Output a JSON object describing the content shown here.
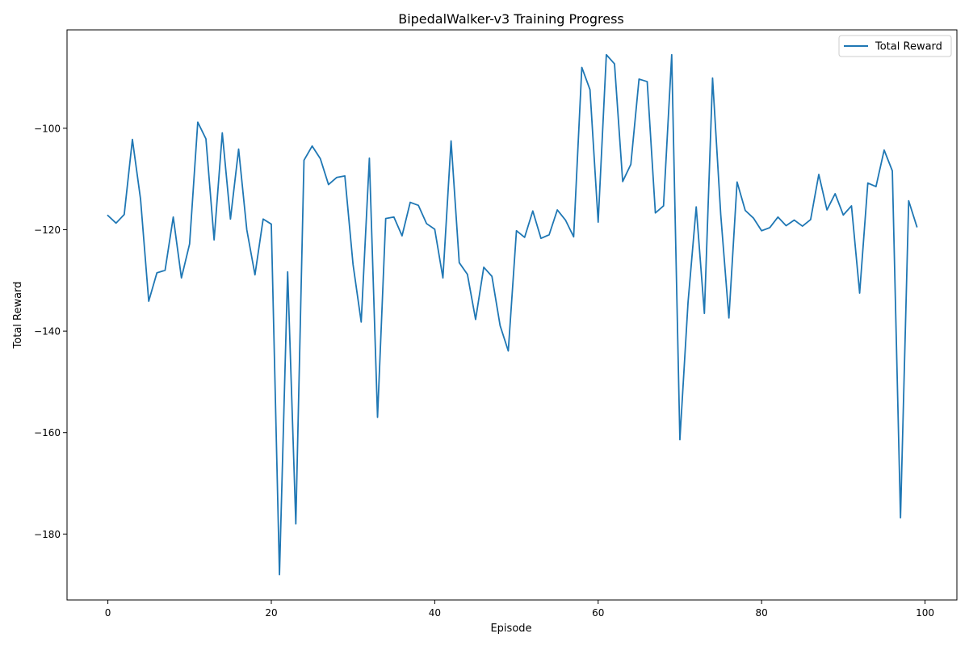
{
  "chart_data": {
    "type": "line",
    "title": "BipedalWalker-v3 Training Progress",
    "xlabel": "Episode",
    "ylabel": "Total Reward",
    "xlim": [
      -5,
      103.9
    ],
    "ylim": [
      -193,
      -80.6
    ],
    "xticks": [
      0,
      20,
      40,
      60,
      80,
      100
    ],
    "yticks": [
      -180,
      -160,
      -140,
      -120,
      -100
    ],
    "grid": false,
    "legend_position": "top-right",
    "series": [
      {
        "name": "Total Reward",
        "color": "#1f77b4",
        "x": [
          0,
          1,
          2,
          3,
          4,
          5,
          6,
          7,
          8,
          9,
          10,
          11,
          12,
          13,
          14,
          15,
          16,
          17,
          18,
          19,
          20,
          21,
          22,
          23,
          24,
          25,
          26,
          27,
          28,
          29,
          30,
          31,
          32,
          33,
          34,
          35,
          36,
          37,
          38,
          39,
          40,
          41,
          42,
          43,
          44,
          45,
          46,
          47,
          48,
          49,
          50,
          51,
          52,
          53,
          54,
          55,
          56,
          57,
          58,
          59,
          60,
          61,
          62,
          63,
          64,
          65,
          66,
          67,
          68,
          69,
          70,
          71,
          72,
          73,
          74,
          75,
          76,
          77,
          78,
          79,
          80,
          81,
          82,
          83,
          84,
          85,
          86,
          87,
          88,
          89,
          90,
          91,
          92,
          93,
          94,
          95,
          96,
          97,
          98,
          99
        ],
        "values": [
          -117.2,
          -118.7,
          -117.0,
          -102.2,
          -114.0,
          -134.1,
          -128.5,
          -128.0,
          -117.5,
          -129.5,
          -122.8,
          -98.8,
          -102.1,
          -122.0,
          -100.9,
          -117.9,
          -104.1,
          -120.0,
          -128.9,
          -117.9,
          -118.9,
          -188.0,
          -128.3,
          -178.0,
          -106.3,
          -103.5,
          -106.0,
          -111.1,
          -109.7,
          -109.4,
          -126.8,
          -138.2,
          -105.9,
          -157.0,
          -117.8,
          -117.5,
          -121.2,
          -114.6,
          -115.2,
          -118.8,
          -119.9,
          -129.5,
          -102.5,
          -126.5,
          -128.8,
          -137.7,
          -127.4,
          -129.2,
          -138.9,
          -143.9,
          -120.2,
          -121.5,
          -116.3,
          -121.7,
          -121.0,
          -116.1,
          -118.1,
          -121.4,
          -88.0,
          -92.4,
          -118.5,
          -85.5,
          -87.3,
          -110.5,
          -107.1,
          -90.3,
          -90.8,
          -116.7,
          -115.3,
          -85.5,
          -161.4,
          -134.3,
          -115.5,
          -136.5,
          -90.1,
          -117.0,
          -137.4,
          -110.6,
          -116.2,
          -117.7,
          -120.2,
          -119.6,
          -117.5,
          -119.2,
          -118.1,
          -119.3,
          -118.0,
          -109.1,
          -116.1,
          -112.9,
          -117.1,
          -115.3,
          -132.5,
          -110.8,
          -111.5,
          -104.3,
          -108.4,
          -176.8,
          -114.3,
          -119.4
        ]
      }
    ]
  }
}
